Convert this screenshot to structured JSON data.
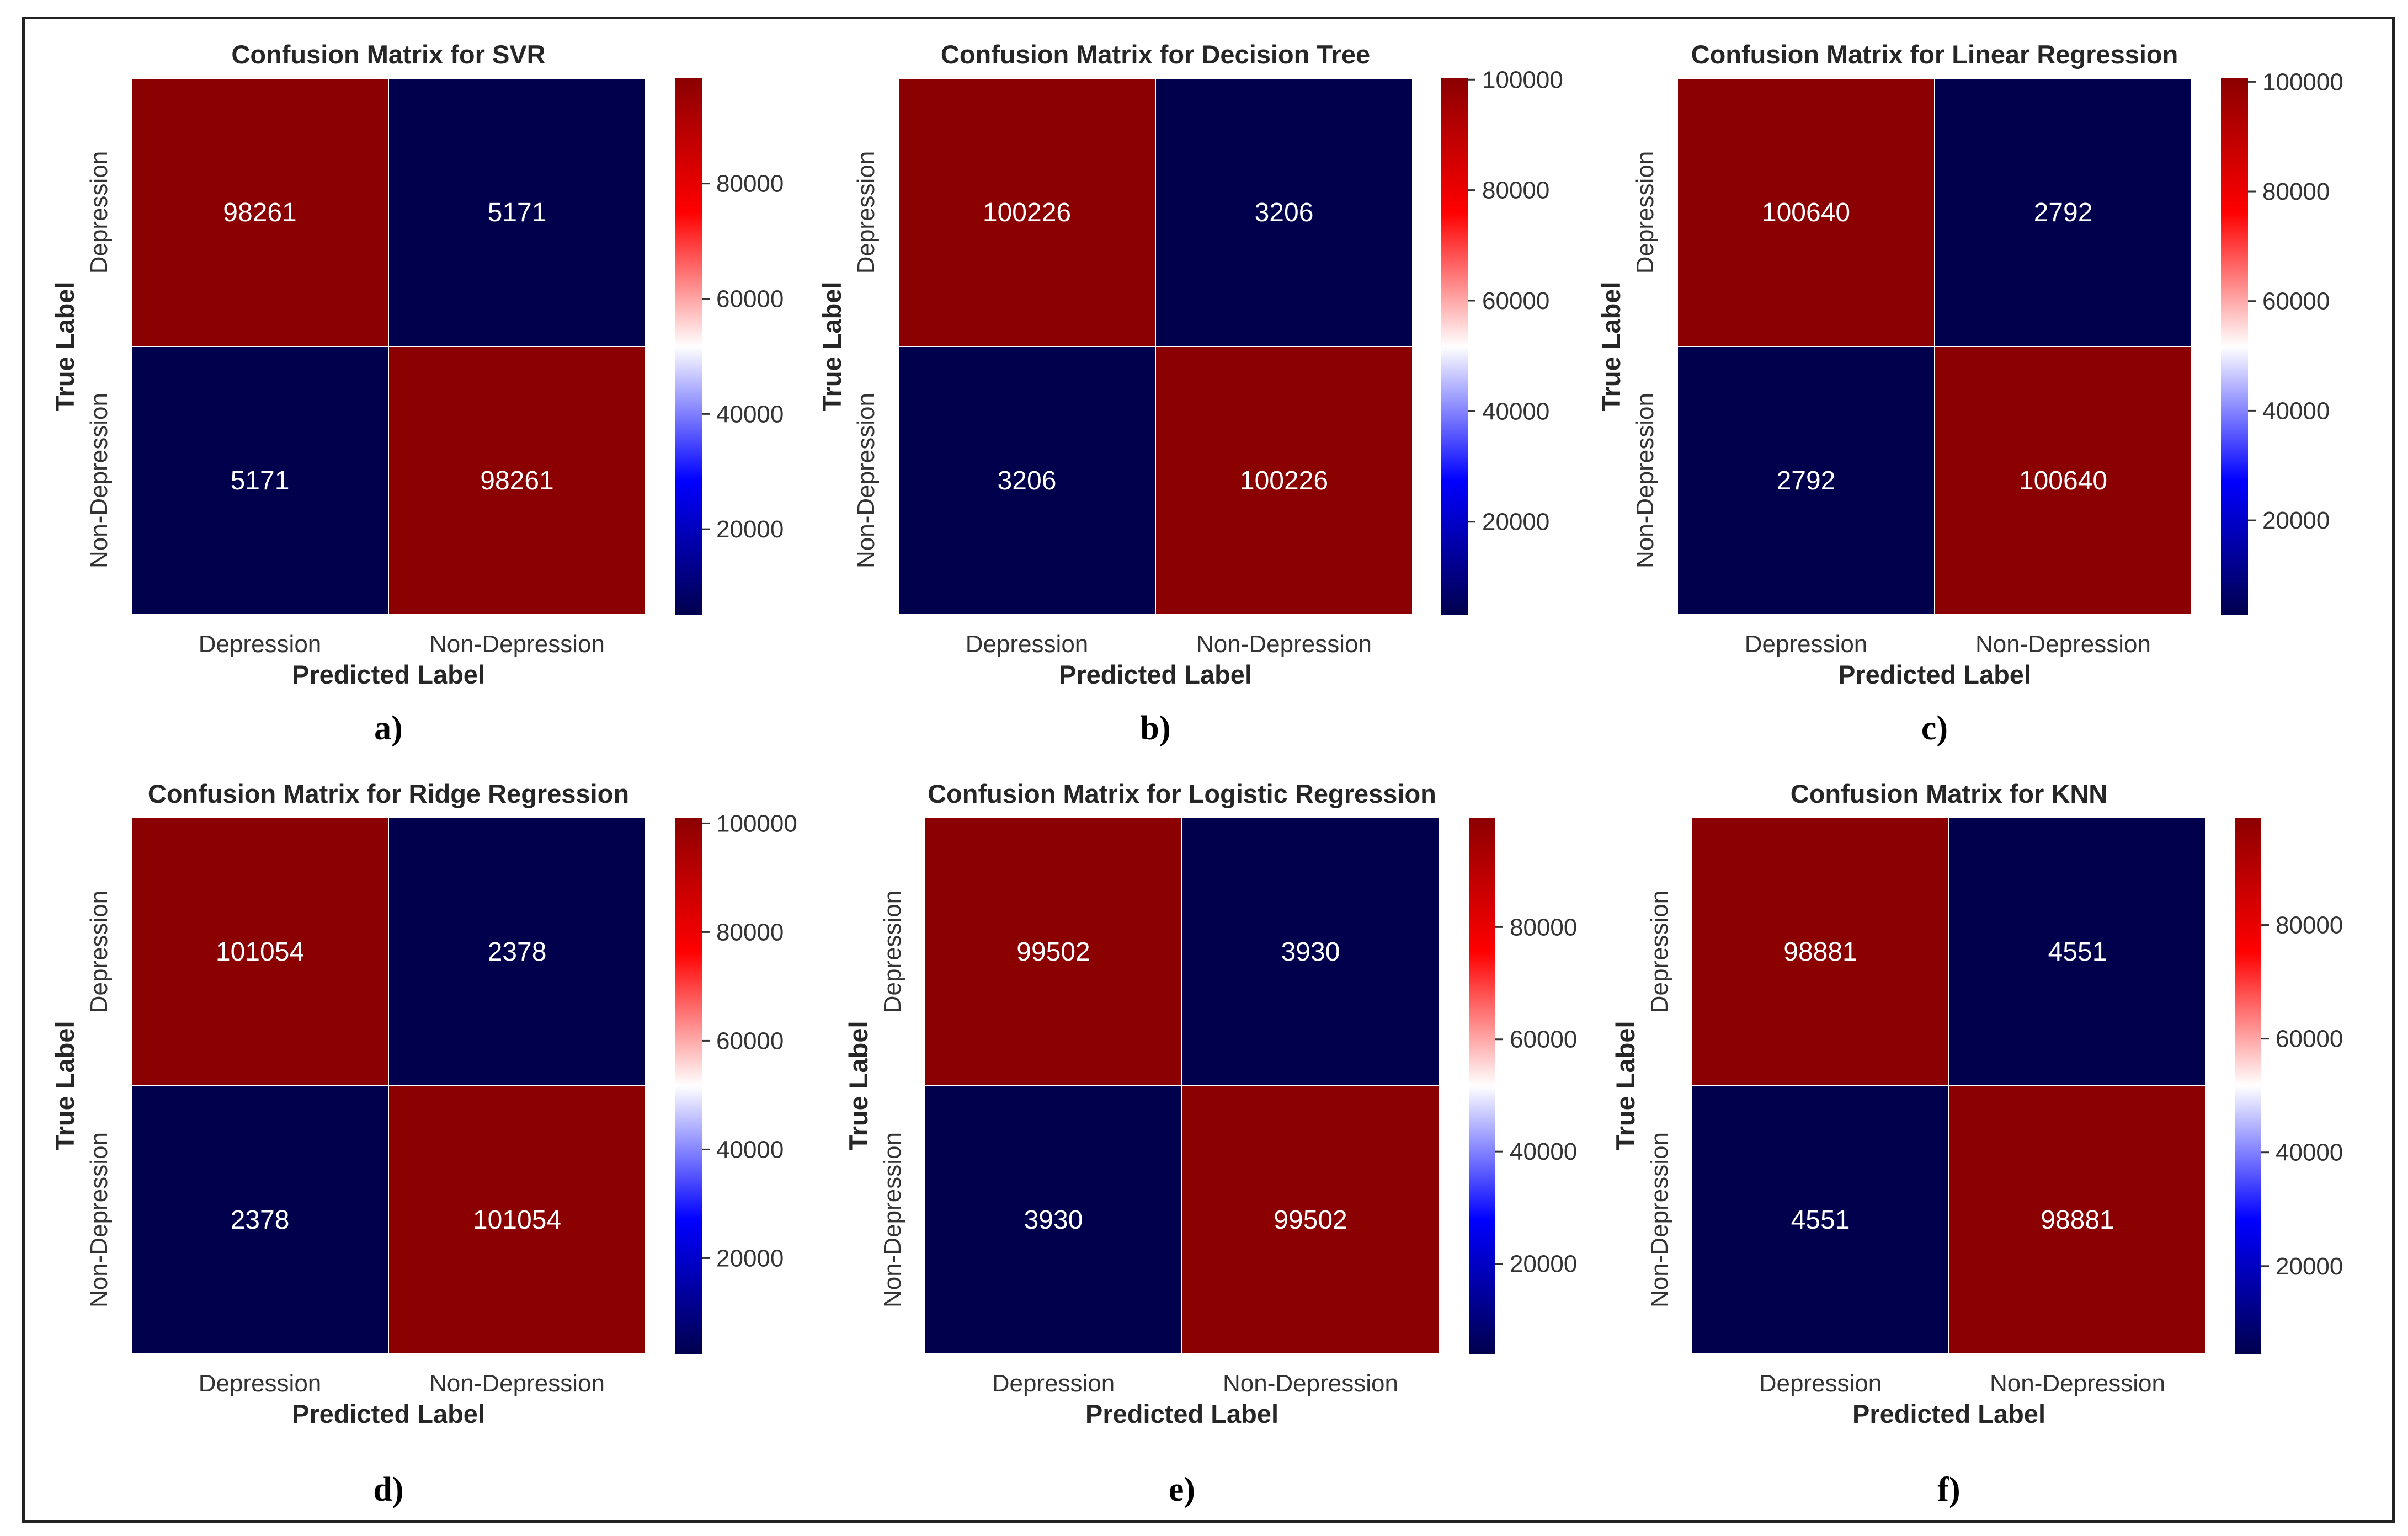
{
  "colors": {
    "high": "#8B0000",
    "low": "#00004D",
    "cmap": [
      "#00004D",
      "#0000FF",
      "#FFFFFF",
      "#FF0000",
      "#8B0000"
    ]
  },
  "chart_data": [
    {
      "type": "heatmap",
      "panel_label": "a)",
      "title": "Confusion Matrix for SVR",
      "xlabel": "Predicted Label",
      "ylabel": "True Label",
      "x_categories": [
        "Depression",
        "Non-Depression"
      ],
      "y_categories": [
        "Depression",
        "Non-Depression"
      ],
      "values": [
        [
          98261,
          5171
        ],
        [
          5171,
          98261
        ]
      ],
      "colorbar": {
        "vmin": 5171,
        "vmax": 98261,
        "ticks": [
          20000,
          40000,
          60000,
          80000
        ]
      }
    },
    {
      "type": "heatmap",
      "panel_label": "b)",
      "title": "Confusion Matrix for Decision Tree",
      "xlabel": "Predicted Label",
      "ylabel": "True Label",
      "x_categories": [
        "Depression",
        "Non-Depression"
      ],
      "y_categories": [
        "Depression",
        "Non-Depression"
      ],
      "values": [
        [
          100226,
          3206
        ],
        [
          3206,
          100226
        ]
      ],
      "colorbar": {
        "vmin": 3206,
        "vmax": 100226,
        "ticks": [
          20000,
          40000,
          60000,
          80000,
          100000
        ]
      }
    },
    {
      "type": "heatmap",
      "panel_label": "c)",
      "title": "Confusion Matrix for Linear Regression",
      "xlabel": "Predicted Label",
      "ylabel": "True Label",
      "x_categories": [
        "Depression",
        "Non-Depression"
      ],
      "y_categories": [
        "Depression",
        "Non-Depression"
      ],
      "values": [
        [
          100640,
          2792
        ],
        [
          2792,
          100640
        ]
      ],
      "colorbar": {
        "vmin": 2792,
        "vmax": 100640,
        "ticks": [
          20000,
          40000,
          60000,
          80000,
          100000
        ]
      }
    },
    {
      "type": "heatmap",
      "panel_label": "d)",
      "title": "Confusion Matrix for Ridge Regression",
      "xlabel": "Predicted Label",
      "ylabel": "True Label",
      "x_categories": [
        "Depression",
        "Non-Depression"
      ],
      "y_categories": [
        "Depression",
        "Non-Depression"
      ],
      "values": [
        [
          101054,
          2378
        ],
        [
          2378,
          101054
        ]
      ],
      "colorbar": {
        "vmin": 2378,
        "vmax": 101054,
        "ticks": [
          20000,
          40000,
          60000,
          80000,
          100000
        ]
      }
    },
    {
      "type": "heatmap",
      "panel_label": "e)",
      "title": "Confusion Matrix for Logistic Regression",
      "xlabel": "Predicted Label",
      "ylabel": "True Label",
      "x_categories": [
        "Depression",
        "Non-Depression"
      ],
      "y_categories": [
        "Depression",
        "Non-Depression"
      ],
      "values": [
        [
          99502,
          3930
        ],
        [
          3930,
          99502
        ]
      ],
      "colorbar": {
        "vmin": 3930,
        "vmax": 99502,
        "ticks": [
          20000,
          40000,
          60000,
          80000
        ]
      }
    },
    {
      "type": "heatmap",
      "panel_label": "f)",
      "title": "Confusion Matrix for KNN",
      "xlabel": "Predicted Label",
      "ylabel": "True Label",
      "x_categories": [
        "Depression",
        "Non-Depression"
      ],
      "y_categories": [
        "Depression",
        "Non-Depression"
      ],
      "values": [
        [
          98881,
          4551
        ],
        [
          4551,
          98881
        ]
      ],
      "colorbar": {
        "vmin": 4551,
        "vmax": 98881,
        "ticks": [
          20000,
          40000,
          60000,
          80000
        ]
      }
    }
  ]
}
